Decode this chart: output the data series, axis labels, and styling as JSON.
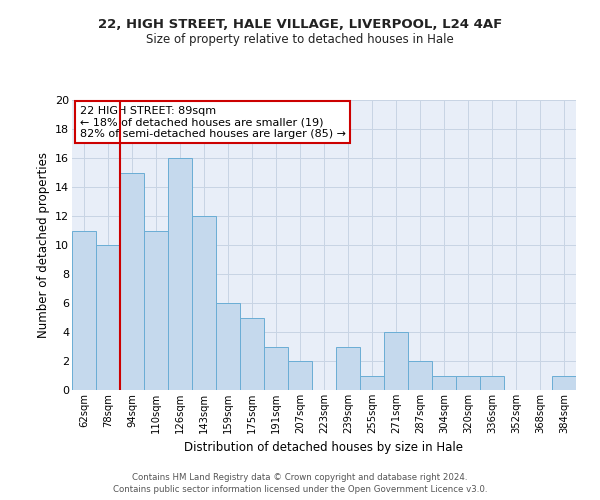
{
  "title1": "22, HIGH STREET, HALE VILLAGE, LIVERPOOL, L24 4AF",
  "title2": "Size of property relative to detached houses in Hale",
  "xlabel": "Distribution of detached houses by size in Hale",
  "ylabel": "Number of detached properties",
  "bar_labels": [
    "62sqm",
    "78sqm",
    "94sqm",
    "110sqm",
    "126sqm",
    "143sqm",
    "159sqm",
    "175sqm",
    "191sqm",
    "207sqm",
    "223sqm",
    "239sqm",
    "255sqm",
    "271sqm",
    "287sqm",
    "304sqm",
    "320sqm",
    "336sqm",
    "352sqm",
    "368sqm",
    "384sqm"
  ],
  "bar_values": [
    11,
    10,
    15,
    11,
    16,
    12,
    6,
    5,
    3,
    2,
    0,
    3,
    1,
    4,
    2,
    1,
    1,
    1,
    0,
    0,
    1
  ],
  "bar_color": "#c5d9ed",
  "bar_edge_color": "#6aadd5",
  "ylim": [
    0,
    20
  ],
  "yticks": [
    0,
    2,
    4,
    6,
    8,
    10,
    12,
    14,
    16,
    18,
    20
  ],
  "redline_index": 2,
  "annotation_title": "22 HIGH STREET: 89sqm",
  "annotation_line1": "← 18% of detached houses are smaller (19)",
  "annotation_line2": "82% of semi-detached houses are larger (85) →",
  "footer1": "Contains HM Land Registry data © Crown copyright and database right 2024.",
  "footer2": "Contains public sector information licensed under the Open Government Licence v3.0.",
  "bg_color": "#ffffff",
  "plot_bg_color": "#e8eef8",
  "grid_color": "#c8d4e4",
  "annotation_box_color": "#ffffff",
  "annotation_box_edge": "#cc0000",
  "redline_color": "#cc0000"
}
